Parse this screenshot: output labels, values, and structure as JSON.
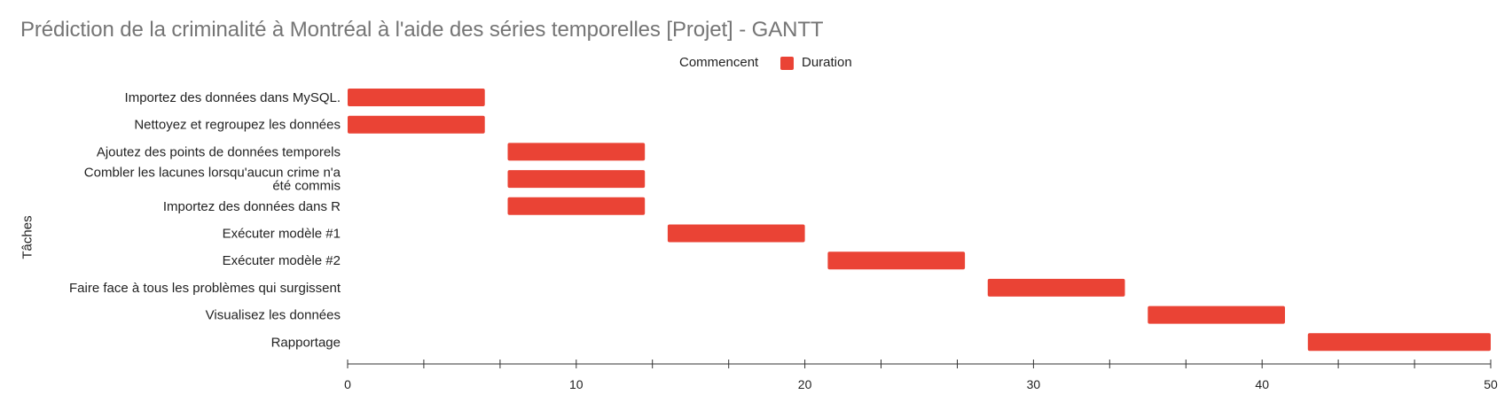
{
  "colors": {
    "bar": "#ea4335",
    "axis": "#333333",
    "title": "#757575"
  },
  "chart_data": {
    "type": "bar",
    "subtype": "gantt",
    "title": "Prédiction de la criminalité à Montréal à l'aide des séries temporelles [Projet] - GANTT",
    "ylabel": "Tâches",
    "xlabel": "",
    "xlim": [
      0,
      50
    ],
    "x_ticks": [
      0,
      10,
      20,
      30,
      40,
      50
    ],
    "grid": false,
    "legend": {
      "position": "top",
      "entries": [
        "Commencent",
        "Duration"
      ]
    },
    "categories": [
      "Importez des données dans MySQL.",
      "Nettoyez et regroupez les données",
      "Ajoutez des points de données temporels",
      "Combler les lacunes lorsqu'aucun crime n'a été commis",
      "Importez des données dans R",
      "Exécuter modèle #1",
      "Exécuter modèle #2",
      "Faire face à tous les problèmes qui surgissent",
      "Visualisez les données",
      "Rapportage"
    ],
    "series": [
      {
        "name": "Commencent",
        "values": [
          0,
          0,
          7,
          7,
          7,
          14,
          21,
          28,
          35,
          42
        ]
      },
      {
        "name": "Duration",
        "values": [
          6,
          6,
          6,
          6,
          6,
          6,
          6,
          6,
          6,
          8
        ]
      }
    ]
  }
}
